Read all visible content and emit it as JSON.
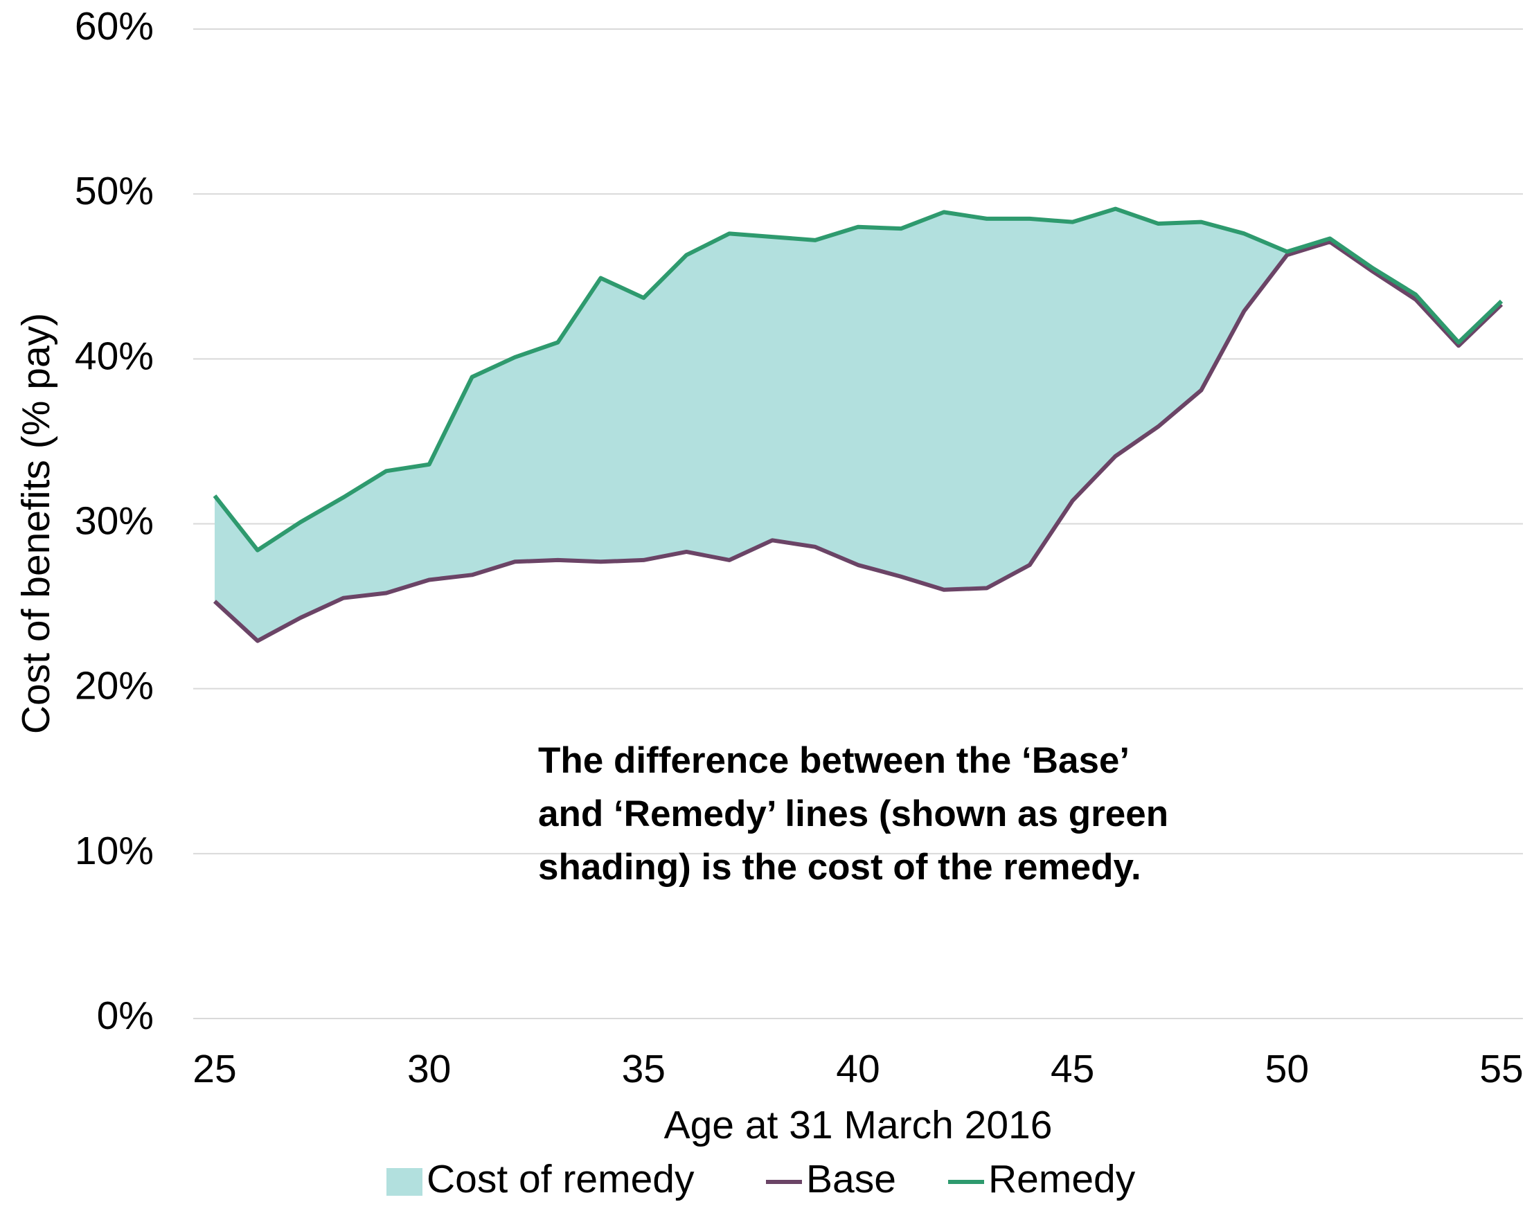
{
  "chart_data": {
    "type": "line",
    "x_label": "Age at 31 March 2016",
    "y_label": "Cost of benefits (% pay)",
    "annotation": [
      "The difference between the ‘Base’",
      "and ‘Remedy’ lines (shown as green",
      "shading) is the cost of the remedy."
    ],
    "x": [
      25,
      26,
      27,
      28,
      29,
      30,
      31,
      32,
      33,
      34,
      35,
      36,
      37,
      38,
      39,
      40,
      41,
      42,
      43,
      44,
      45,
      46,
      47,
      48,
      49,
      50,
      51,
      52,
      53,
      54,
      55
    ],
    "series": [
      {
        "name": "Cost of remedy",
        "type": "area",
        "stacked": true,
        "color": "#b2e0de",
        "values": [
          6.4,
          5.5,
          5.8,
          6.1,
          7.4,
          7.0,
          12.0,
          12.4,
          13.2,
          17.2,
          15.9,
          18.0,
          19.8,
          18.4,
          18.6,
          20.5,
          21.1,
          22.9,
          22.4,
          21.0,
          16.9,
          15.0,
          12.3,
          10.2,
          4.7,
          0.2,
          0.2,
          0.2,
          0.3,
          0.2,
          0.2
        ]
      },
      {
        "name": "Base",
        "type": "line",
        "color": "#6b4466",
        "values": [
          25.3,
          22.9,
          24.3,
          25.5,
          25.8,
          26.6,
          26.9,
          27.7,
          27.8,
          27.7,
          27.8,
          28.3,
          27.8,
          29.0,
          28.6,
          27.5,
          26.8,
          26.0,
          26.1,
          27.5,
          31.4,
          34.1,
          35.9,
          38.1,
          42.9,
          46.3,
          47.1,
          45.3,
          43.6,
          40.8,
          43.3
        ]
      },
      {
        "name": "Remedy",
        "type": "line",
        "color": "#2e9a6e",
        "values": [
          31.7,
          28.4,
          30.1,
          31.6,
          33.2,
          33.6,
          38.9,
          40.1,
          41.0,
          44.9,
          43.7,
          46.3,
          47.6,
          47.4,
          47.2,
          48.0,
          47.9,
          48.9,
          48.5,
          48.5,
          48.3,
          49.1,
          48.2,
          48.3,
          47.6,
          46.5,
          47.3,
          45.5,
          43.9,
          41.0,
          43.5
        ]
      }
    ],
    "xlim": [
      24.5,
      55.5
    ],
    "xticks": [
      25,
      30,
      35,
      40,
      45,
      50,
      55
    ],
    "ylim": [
      0,
      60
    ],
    "yticks": [
      {
        "value": 0,
        "label": "0%"
      },
      {
        "value": 10,
        "label": "10%"
      },
      {
        "value": 20,
        "label": "20%"
      },
      {
        "value": 30,
        "label": "30%"
      },
      {
        "value": 40,
        "label": "40%"
      },
      {
        "value": 50,
        "label": "50%"
      },
      {
        "value": 60,
        "label": "60%"
      }
    ],
    "grid": true,
    "legend": "bottom"
  }
}
